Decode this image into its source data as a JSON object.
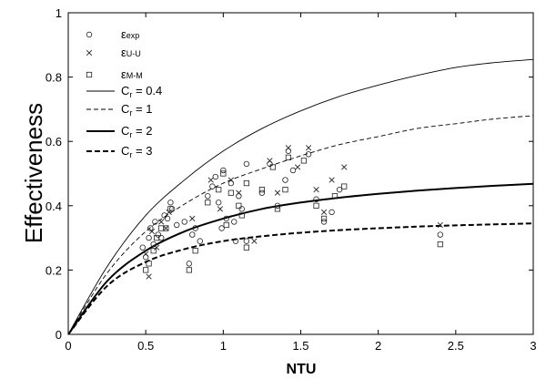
{
  "chart_data": {
    "type": "scatter",
    "xlabel": "NTU",
    "ylabel": "Effectiveness",
    "xlim": [
      0,
      3
    ],
    "ylim": [
      0,
      1
    ],
    "xticks": [
      0,
      0.5,
      1,
      1.5,
      2,
      2.5,
      3
    ],
    "xtick_labels": [
      "0",
      "0.5",
      "1",
      "1.5",
      "2",
      "2.5",
      "3"
    ],
    "yticks": [
      0,
      0.2,
      0.4,
      0.6,
      0.8,
      1
    ],
    "ytick_labels": [
      "0",
      "0.2",
      "0.4",
      "0.6",
      "0.8",
      "1"
    ],
    "grid": false,
    "legend_position": "top-left",
    "legend": [
      {
        "id": "exp",
        "marker": "circle",
        "base": "ε",
        "sub": "exp"
      },
      {
        "id": "uu",
        "marker": "cross",
        "base": "ε",
        "sub": "U-U"
      },
      {
        "id": "mm",
        "marker": "square",
        "base": "ε",
        "sub": "M-M"
      },
      {
        "id": "cr04",
        "line": "thin",
        "label": "C",
        "sub": "r",
        "suffix": " = 0.4"
      },
      {
        "id": "cr1",
        "line": "dashed-thin",
        "label": "C",
        "sub": "r",
        "suffix": " = 1"
      },
      {
        "id": "cr2",
        "line": "thick",
        "label": "C",
        "sub": "r",
        "suffix": " = 2"
      },
      {
        "id": "cr3",
        "line": "dashed-thick",
        "label": "C",
        "sub": "r",
        "suffix": " = 3"
      }
    ],
    "lines": [
      {
        "id": "cr04",
        "Cr": 0.4,
        "style": "thin",
        "x": [
          0,
          0.25,
          0.5,
          0.75,
          1,
          1.25,
          1.5,
          1.75,
          2,
          2.25,
          2.5,
          2.75,
          3
        ],
        "y": [
          0,
          0.21,
          0.37,
          0.48,
          0.57,
          0.64,
          0.695,
          0.74,
          0.775,
          0.805,
          0.83,
          0.845,
          0.855
        ]
      },
      {
        "id": "cr1",
        "Cr": 1,
        "style": "dashed-thin",
        "x": [
          0,
          0.25,
          0.5,
          0.75,
          1,
          1.25,
          1.5,
          1.75,
          2,
          2.25,
          2.5,
          2.75,
          3
        ],
        "y": [
          0,
          0.19,
          0.32,
          0.405,
          0.47,
          0.515,
          0.555,
          0.59,
          0.615,
          0.64,
          0.655,
          0.67,
          0.68
        ]
      },
      {
        "id": "cr2",
        "Cr": 2,
        "style": "thick",
        "x": [
          0,
          0.25,
          0.5,
          0.75,
          1,
          1.25,
          1.5,
          1.75,
          2,
          2.25,
          2.5,
          2.75,
          3
        ],
        "y": [
          0,
          0.165,
          0.26,
          0.32,
          0.36,
          0.39,
          0.41,
          0.425,
          0.437,
          0.447,
          0.455,
          0.462,
          0.468
        ]
      },
      {
        "id": "cr3",
        "Cr": 3,
        "style": "dashed-thick",
        "x": [
          0,
          0.25,
          0.5,
          0.75,
          1,
          1.25,
          1.5,
          1.75,
          2,
          2.25,
          2.5,
          2.75,
          3
        ],
        "y": [
          0,
          0.15,
          0.225,
          0.265,
          0.29,
          0.305,
          0.316,
          0.324,
          0.33,
          0.335,
          0.339,
          0.342,
          0.345
        ]
      }
    ],
    "series": [
      {
        "id": "exp",
        "marker": "circle",
        "points": [
          [
            0.48,
            0.27
          ],
          [
            0.5,
            0.24
          ],
          [
            0.52,
            0.3
          ],
          [
            0.53,
            0.33
          ],
          [
            0.55,
            0.28
          ],
          [
            0.56,
            0.35
          ],
          [
            0.58,
            0.31
          ],
          [
            0.6,
            0.3
          ],
          [
            0.62,
            0.37
          ],
          [
            0.64,
            0.36
          ],
          [
            0.66,
            0.41
          ],
          [
            0.67,
            0.39
          ],
          [
            0.7,
            0.34
          ],
          [
            0.75,
            0.35
          ],
          [
            0.78,
            0.22
          ],
          [
            0.8,
            0.31
          ],
          [
            0.82,
            0.33
          ],
          [
            0.85,
            0.29
          ],
          [
            0.9,
            0.43
          ],
          [
            0.93,
            0.46
          ],
          [
            0.95,
            0.49
          ],
          [
            0.97,
            0.41
          ],
          [
            0.99,
            0.33
          ],
          [
            1.0,
            0.51
          ],
          [
            1.02,
            0.36
          ],
          [
            1.05,
            0.47
          ],
          [
            1.07,
            0.35
          ],
          [
            1.08,
            0.29
          ],
          [
            1.1,
            0.43
          ],
          [
            1.12,
            0.39
          ],
          [
            1.15,
            0.53
          ],
          [
            1.15,
            0.29
          ],
          [
            1.25,
            0.44
          ],
          [
            1.3,
            0.53
          ],
          [
            1.35,
            0.4
          ],
          [
            1.4,
            0.48
          ],
          [
            1.42,
            0.57
          ],
          [
            1.45,
            0.51
          ],
          [
            1.55,
            0.56
          ],
          [
            1.6,
            0.42
          ],
          [
            1.65,
            0.35
          ],
          [
            1.7,
            0.38
          ],
          [
            1.75,
            0.45
          ],
          [
            2.4,
            0.31
          ]
        ]
      },
      {
        "id": "uu",
        "marker": "cross",
        "points": [
          [
            0.5,
            0.25
          ],
          [
            0.52,
            0.18
          ],
          [
            0.54,
            0.32
          ],
          [
            0.57,
            0.27
          ],
          [
            0.6,
            0.35
          ],
          [
            0.63,
            0.33
          ],
          [
            0.65,
            0.38
          ],
          [
            0.8,
            0.36
          ],
          [
            0.92,
            0.48
          ],
          [
            0.98,
            0.39
          ],
          [
            1.05,
            0.48
          ],
          [
            1.1,
            0.44
          ],
          [
            1.2,
            0.29
          ],
          [
            1.3,
            0.54
          ],
          [
            1.35,
            0.44
          ],
          [
            1.42,
            0.58
          ],
          [
            1.48,
            0.52
          ],
          [
            1.55,
            0.58
          ],
          [
            1.6,
            0.45
          ],
          [
            1.65,
            0.38
          ],
          [
            1.7,
            0.48
          ],
          [
            1.78,
            0.52
          ],
          [
            2.4,
            0.34
          ]
        ]
      },
      {
        "id": "mm",
        "marker": "square",
        "points": [
          [
            0.5,
            0.2
          ],
          [
            0.52,
            0.22
          ],
          [
            0.55,
            0.26
          ],
          [
            0.57,
            0.3
          ],
          [
            0.6,
            0.33
          ],
          [
            0.63,
            0.33
          ],
          [
            0.66,
            0.39
          ],
          [
            0.78,
            0.2
          ],
          [
            0.82,
            0.26
          ],
          [
            0.9,
            0.41
          ],
          [
            0.97,
            0.45
          ],
          [
            1.0,
            0.5
          ],
          [
            1.02,
            0.34
          ],
          [
            1.05,
            0.44
          ],
          [
            1.1,
            0.4
          ],
          [
            1.12,
            0.37
          ],
          [
            1.15,
            0.47
          ],
          [
            1.15,
            0.27
          ],
          [
            1.25,
            0.45
          ],
          [
            1.32,
            0.52
          ],
          [
            1.35,
            0.39
          ],
          [
            1.4,
            0.45
          ],
          [
            1.42,
            0.55
          ],
          [
            1.52,
            0.54
          ],
          [
            1.6,
            0.4
          ],
          [
            1.65,
            0.36
          ],
          [
            1.72,
            0.43
          ],
          [
            1.78,
            0.46
          ],
          [
            2.4,
            0.28
          ]
        ]
      }
    ]
  }
}
